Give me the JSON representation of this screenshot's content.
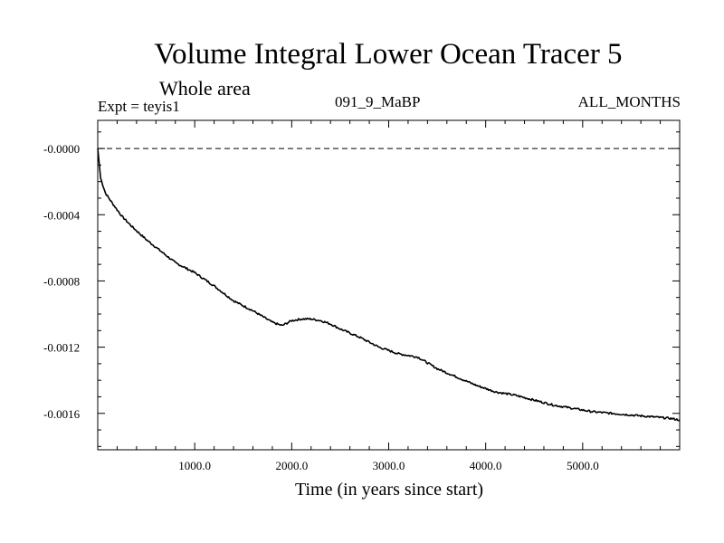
{
  "header": {
    "title": "Volume Integral Lower Ocean Tracer 5",
    "subtitle": "Whole area",
    "experiment": "Expt = teyis1",
    "run_label": "091_9_MaBP",
    "months_label": "ALL_MONTHS"
  },
  "chart_data": {
    "type": "line",
    "title": "Volume Integral Lower Ocean Tracer 5",
    "subtitle": "Whole area",
    "xlabel": "Time (in years since start)",
    "ylabel": "",
    "xlim": [
      0,
      6000
    ],
    "ylim": [
      -0.00182,
      0.00017
    ],
    "x_ticks": [
      1000,
      2000,
      3000,
      4000,
      5000
    ],
    "x_tick_labels": [
      "1000.0",
      "2000.0",
      "3000.0",
      "4000.0",
      "5000.0"
    ],
    "y_ticks": [
      0,
      -0.0004,
      -0.0008,
      -0.0012,
      -0.0016
    ],
    "y_tick_labels": [
      "-0.0000",
      "-0.0004",
      "-0.0008",
      "-0.0012",
      "-0.0016"
    ],
    "reference_line": {
      "y": 0,
      "style": "dashed"
    },
    "grid": false,
    "series": [
      {
        "name": "Lower Ocean Tracer 5",
        "x": [
          0,
          30,
          80,
          150,
          250,
          350,
          500,
          650,
          800,
          1000,
          1200,
          1400,
          1600,
          1800,
          1900,
          2000,
          2100,
          2200,
          2300,
          2400,
          2500,
          2700,
          2900,
          3100,
          3300,
          3500,
          3700,
          3900,
          4100,
          4300,
          4500,
          4700,
          4900,
          5100,
          5300,
          5500,
          5700,
          5900,
          6000
        ],
        "y": [
          0.0,
          -0.00018,
          -0.00027,
          -0.00033,
          -0.00041,
          -0.00047,
          -0.00055,
          -0.00062,
          -0.00069,
          -0.00075,
          -0.00083,
          -0.00092,
          -0.00098,
          -0.00105,
          -0.00107,
          -0.00104,
          -0.00103,
          -0.00103,
          -0.00104,
          -0.00106,
          -0.00109,
          -0.00114,
          -0.0012,
          -0.00124,
          -0.00126,
          -0.00133,
          -0.00138,
          -0.00143,
          -0.00147,
          -0.00149,
          -0.00152,
          -0.00155,
          -0.00157,
          -0.00159,
          -0.0016,
          -0.00161,
          -0.00162,
          -0.00163,
          -0.00164
        ]
      }
    ]
  }
}
